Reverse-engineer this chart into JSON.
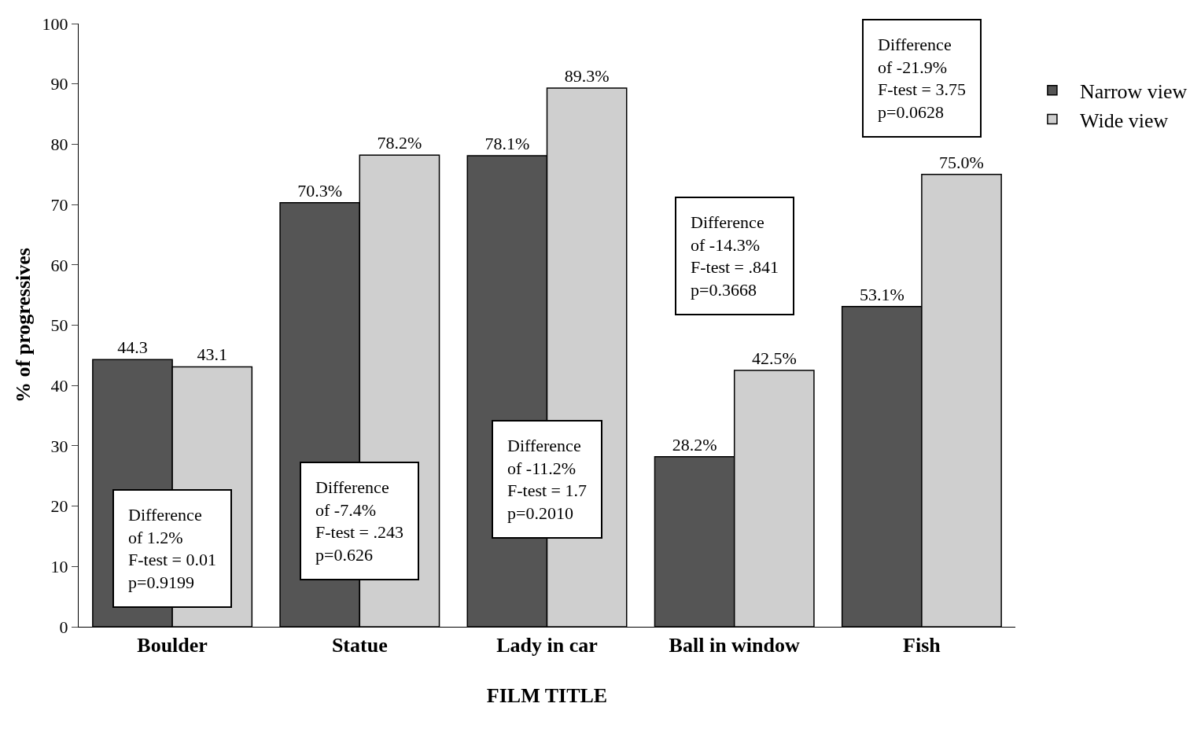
{
  "chart_data": {
    "type": "bar",
    "xlabel": "FILM TITLE",
    "ylabel": "% of progressives",
    "categories": [
      "Boulder",
      "Statue",
      "Lady in car",
      "Ball in window",
      "Fish"
    ],
    "series": [
      {
        "name": "Narrow view",
        "color": "#555555",
        "values": [
          44.3,
          70.3,
          78.1,
          28.2,
          53.1
        ],
        "value_labels": [
          "44.3",
          "70.3%",
          "78.1%",
          "28.2%",
          "53.1%"
        ]
      },
      {
        "name": "Wide view",
        "color": "#cfcfcf",
        "values": [
          43.1,
          78.2,
          89.3,
          42.5,
          75.0
        ],
        "value_labels": [
          "43.1",
          "78.2%",
          "89.3%",
          "42.5%",
          "75.0%"
        ]
      }
    ],
    "ylim": [
      0,
      100
    ],
    "yticks": [
      0,
      10,
      20,
      30,
      40,
      50,
      60,
      70,
      80,
      90,
      100
    ],
    "grid": false,
    "legend": "top right",
    "annotations": [
      "Difference\nof 1.2%\nF-test = 0.01\np=0.9199",
      "Difference\nof -7.4%\nF-test = .243\np=0.626",
      "Difference\nof -11.2%\nF-test = 1.7\np=0.2010",
      "Difference\nof -14.3%\nF-test = .841\np=0.3668",
      "Difference\nof -21.9%\nF-test = 3.75\np=0.0628"
    ]
  }
}
